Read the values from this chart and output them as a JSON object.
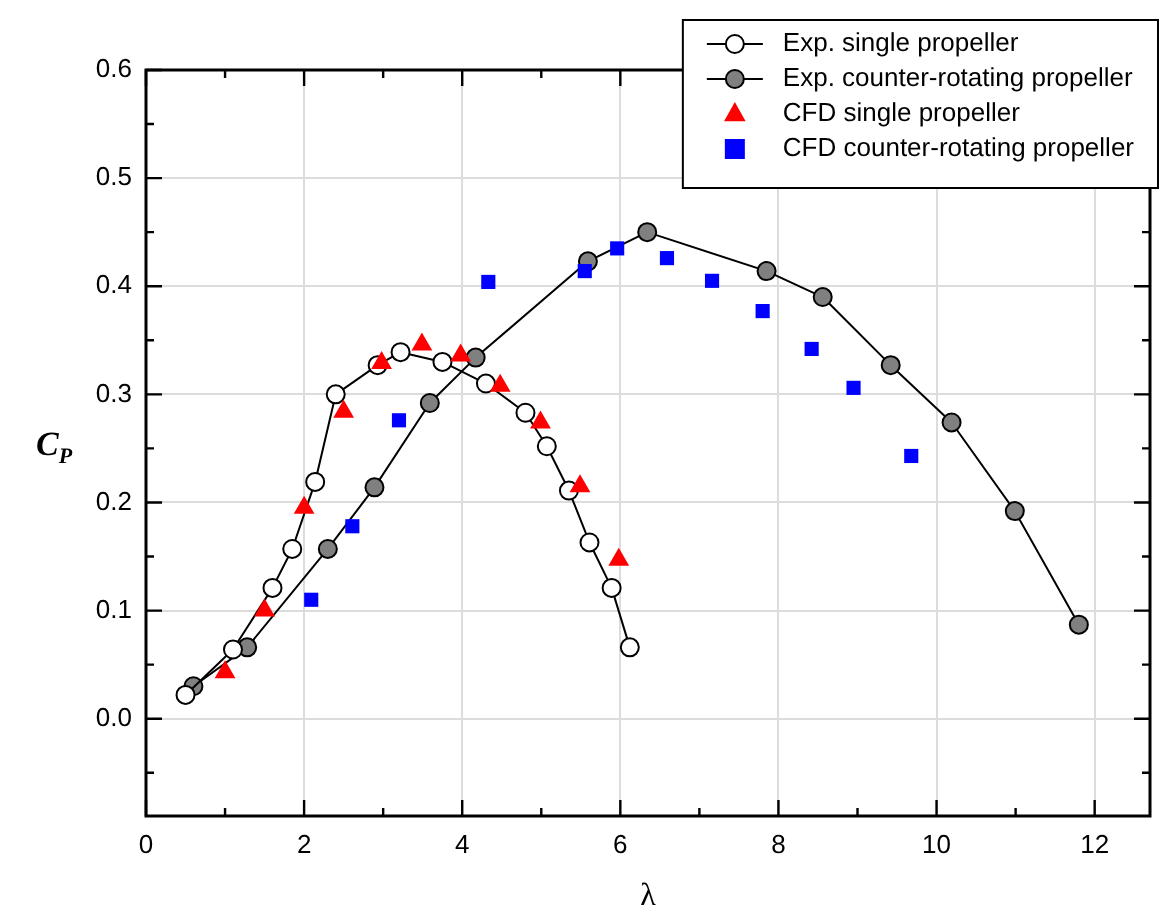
{
  "chart_data": {
    "type": "line",
    "xlabel": "λ",
    "ylabel": "C$_{P}$",
    "xlim": [
      0,
      12.7
    ],
    "ylim": [
      -0.09,
      0.6
    ],
    "xticks": [
      0,
      {
        "value": 1,
        "label": null
      },
      2,
      {
        "value": 3,
        "label": null
      },
      4,
      {
        "value": 5,
        "label": null
      },
      6,
      {
        "value": 7,
        "label": null
      },
      8,
      {
        "value": 9,
        "label": null
      },
      10,
      {
        "value": 11,
        "label": null
      },
      12
    ],
    "yticks": [
      {
        "value": -0.05,
        "label": null
      },
      {
        "value": 0,
        "label": "0.0"
      },
      {
        "value": 0.05,
        "label": null
      },
      0.1,
      {
        "value": 0.15,
        "label": null
      },
      0.2,
      {
        "value": 0.25,
        "label": null
      },
      0.3,
      {
        "value": 0.35,
        "label": null
      },
      0.4,
      {
        "value": 0.45,
        "label": null
      },
      0.5,
      {
        "value": 0.55,
        "label": null
      },
      0.6
    ],
    "grid": true,
    "legend": "top right",
    "series": [
      {
        "name": "Exp. single propeller",
        "marker": "circle",
        "color": "#ffffff",
        "x": [
          0.5,
          1.1,
          1.6,
          1.85,
          2.14,
          2.4,
          2.93,
          3.22,
          3.75,
          4.3,
          4.8,
          5.07,
          5.35,
          5.61,
          5.89,
          6.12
        ],
        "values": [
          0.022,
          0.064,
          0.121,
          0.157,
          0.219,
          0.3,
          0.327,
          0.339,
          0.33,
          0.31,
          0.283,
          0.252,
          0.211,
          0.163,
          0.121,
          0.066
        ]
      },
      {
        "name": "Exp. counter-rotating propeller",
        "marker": "circle",
        "color": "#808080",
        "x": [
          0.6,
          1.28,
          2.3,
          2.89,
          3.59,
          4.17,
          5.59,
          6.34,
          7.85,
          8.56,
          9.42,
          10.19,
          10.99,
          11.8
        ],
        "values": [
          0.03,
          0.066,
          0.157,
          0.214,
          0.292,
          0.334,
          0.423,
          0.45,
          0.414,
          0.39,
          0.327,
          0.274,
          0.192,
          0.087
        ]
      },
      {
        "name": "CFD single propeller",
        "type": "scatter",
        "marker": "triangle",
        "color": "#ff0000",
        "x": [
          1.0,
          1.5,
          2.0,
          2.5,
          2.98,
          3.49,
          3.98,
          4.48,
          4.99,
          5.49,
          5.98
        ],
        "values": [
          0.043,
          0.1,
          0.195,
          0.284,
          0.329,
          0.346,
          0.336,
          0.308,
          0.274,
          0.215,
          0.147
        ]
      },
      {
        "name": "CFD counter-rotating propeller",
        "type": "scatter",
        "marker": "square",
        "color": "#0000ff",
        "x": [
          2.09,
          2.61,
          3.2,
          4.33,
          5.55,
          5.96,
          6.59,
          7.16,
          7.8,
          8.42,
          8.95,
          9.68
        ],
        "values": [
          0.11,
          0.178,
          0.276,
          0.404,
          0.414,
          0.435,
          0.426,
          0.405,
          0.377,
          0.342,
          0.306,
          0.243
        ]
      }
    ]
  }
}
